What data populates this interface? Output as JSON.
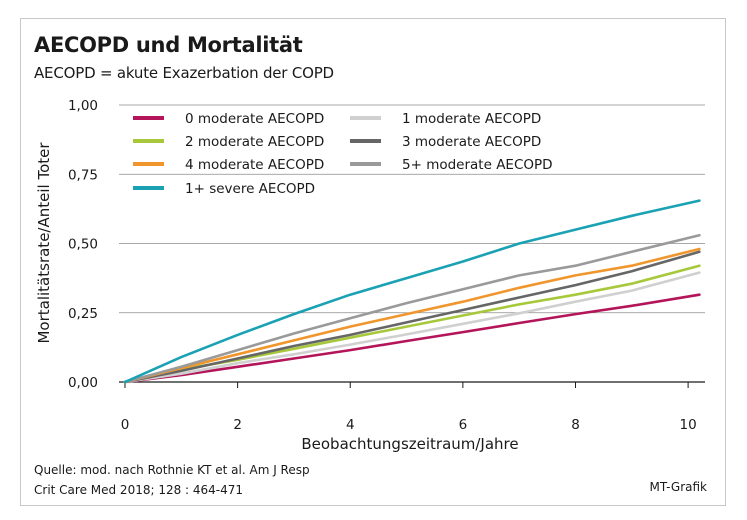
{
  "title": "AECOPD und Mortalität",
  "subtitle": "AECOPD = akute Exazerbation der COPD",
  "source_line1": "Quelle: mod. nach Rothnie KT et al. Am J Resp",
  "source_line2": "Crit Care Med 2018; 128 : 464-471",
  "credit": "MT-Grafik",
  "chart_data": {
    "type": "line",
    "xlabel": "Beobachtungszeitraum/Jahre",
    "ylabel": "Mortalitätsrate/Anteil Toter",
    "xlim": [
      0,
      10.3
    ],
    "ylim": [
      0,
      1.0
    ],
    "xticks": [
      0,
      2,
      4,
      6,
      8,
      10
    ],
    "xtick_labels": [
      "0",
      "2",
      "4",
      "6",
      "8",
      "10"
    ],
    "yticks": [
      0,
      0.25,
      0.5,
      0.75,
      1.0
    ],
    "ytick_labels": [
      "0,00",
      "0,25",
      "0,50",
      "0,75",
      "1,00"
    ],
    "grid": "horizontal",
    "legend": "top-left",
    "series": [
      {
        "name": "0 moderate AECOPD",
        "color": "#b3145a",
        "x": [
          0,
          1,
          2,
          3,
          4,
          5,
          6,
          7,
          8,
          9,
          10.2
        ],
        "y": [
          0,
          0.025,
          0.055,
          0.085,
          0.115,
          0.148,
          0.18,
          0.213,
          0.245,
          0.275,
          0.315
        ]
      },
      {
        "name": "1 moderate AECOPD",
        "color": "#d0d0d0",
        "x": [
          0,
          1,
          2,
          3,
          4,
          5,
          6,
          7,
          8,
          9,
          10.2
        ],
        "y": [
          0,
          0.03,
          0.068,
          0.1,
          0.135,
          0.172,
          0.21,
          0.248,
          0.29,
          0.33,
          0.395
        ]
      },
      {
        "name": "2 moderate AECOPD",
        "color": "#a8c83c",
        "x": [
          0,
          1,
          2,
          3,
          4,
          5,
          6,
          7,
          8,
          9,
          10.2
        ],
        "y": [
          0,
          0.045,
          0.08,
          0.12,
          0.16,
          0.2,
          0.24,
          0.28,
          0.315,
          0.355,
          0.42
        ]
      },
      {
        "name": "3 moderate AECOPD",
        "color": "#666666",
        "x": [
          0,
          1,
          2,
          3,
          4,
          5,
          6,
          7,
          8,
          9,
          10.2
        ],
        "y": [
          0,
          0.04,
          0.085,
          0.13,
          0.17,
          0.215,
          0.26,
          0.305,
          0.35,
          0.4,
          0.47
        ]
      },
      {
        "name": "4 moderate AECOPD",
        "color": "#f0962d",
        "x": [
          0,
          1,
          2,
          3,
          4,
          5,
          6,
          7,
          8,
          9,
          10.2
        ],
        "y": [
          0,
          0.05,
          0.1,
          0.15,
          0.2,
          0.245,
          0.29,
          0.34,
          0.385,
          0.42,
          0.48
        ]
      },
      {
        "name": "5+ moderate AECOPD",
        "color": "#9a9a9a",
        "x": [
          0,
          1,
          2,
          3,
          4,
          5,
          6,
          7,
          8,
          9,
          10.2
        ],
        "y": [
          0,
          0.055,
          0.115,
          0.175,
          0.23,
          0.285,
          0.335,
          0.385,
          0.42,
          0.47,
          0.53
        ]
      },
      {
        "name": "1+ severe AECOPD",
        "color": "#1aa2b4",
        "x": [
          0,
          1,
          2,
          3,
          4,
          5,
          6,
          7,
          8,
          9,
          10.2
        ],
        "y": [
          0,
          0.09,
          0.17,
          0.245,
          0.315,
          0.375,
          0.435,
          0.5,
          0.55,
          0.6,
          0.655
        ]
      }
    ],
    "legend_order": [
      0,
      1,
      2,
      3,
      4,
      5,
      6
    ]
  }
}
